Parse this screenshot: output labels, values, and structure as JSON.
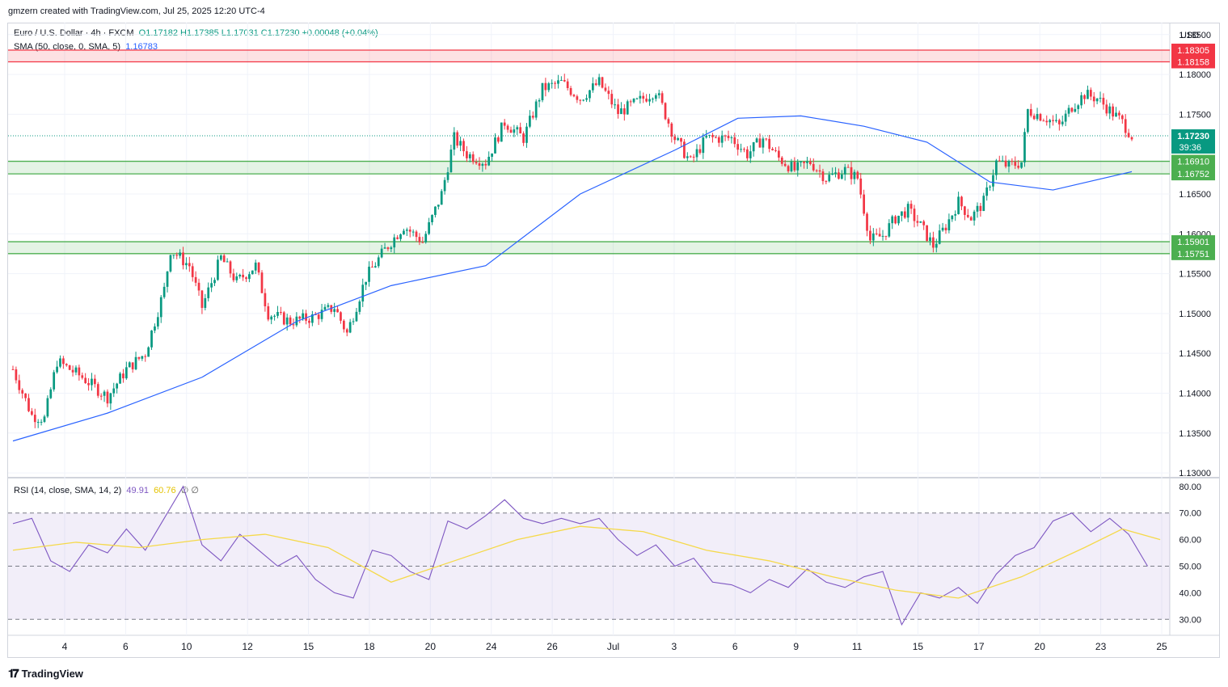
{
  "header": {
    "credit": "gmzern created with TradingView.com, Jul 25, 2025 12:20 UTC-4"
  },
  "main_legend": {
    "symbol": "Euro / U.S. Dollar · 4h · FXCM",
    "ohlc": "O1.17182  H1.17385  L1.17031  C1.17230  +0.00048 (+0.04%)",
    "sma_label": "SMA (50, close, 0, SMA, 5)",
    "sma_value": "1.16783"
  },
  "rsi_legend": {
    "label": "RSI (14, close, SMA, 14, 2)",
    "rsi_value": "49.91",
    "ma_value": "60.76",
    "extra": "∅  ∅"
  },
  "currency": "USD",
  "footer": {
    "brand": "TradingView"
  },
  "chart_data": [
    {
      "type": "candlestick",
      "title": "Euro / U.S. Dollar · 4h · FXCM",
      "y_ticks": [
        "1.18500",
        "1.18000",
        "1.17500",
        "1.16500",
        "1.16000",
        "1.15500",
        "1.15000",
        "1.14500",
        "1.14000",
        "1.13500",
        "1.13000"
      ],
      "ylim": [
        1.1295,
        1.1865
      ],
      "x_ticks": [
        "4",
        "6",
        "10",
        "12",
        "15",
        "18",
        "20",
        "24",
        "26",
        "Jul",
        "3",
        "6",
        "9",
        "11",
        "15",
        "17",
        "20",
        "23",
        "25"
      ],
      "last_price": {
        "value": "1.17230",
        "countdown": "39:36",
        "color": "#089981"
      },
      "zones": [
        {
          "top": "1.18305",
          "bottom": "1.18158",
          "color": "#f23645"
        },
        {
          "top": "1.16910",
          "bottom": "1.16752",
          "color": "#4caf50"
        },
        {
          "top": "1.15901",
          "bottom": "1.15751",
          "color": "#4caf50"
        }
      ],
      "price_path": [
        [
          0,
          1.143
        ],
        [
          6,
          1.1372
        ],
        [
          10,
          1.1368
        ],
        [
          14,
          1.144
        ],
        [
          22,
          1.142
        ],
        [
          30,
          1.1395
        ],
        [
          36,
          1.143
        ],
        [
          42,
          1.145
        ],
        [
          48,
          1.153
        ],
        [
          50,
          1.158
        ],
        [
          56,
          1.156
        ],
        [
          60,
          1.1508
        ],
        [
          66,
          1.157
        ],
        [
          71,
          1.154
        ],
        [
          77,
          1.156
        ],
        [
          81,
          1.15
        ],
        [
          88,
          1.149
        ],
        [
          95,
          1.1495
        ],
        [
          102,
          1.1508
        ],
        [
          106,
          1.1475
        ],
        [
          112,
          1.1545
        ],
        [
          118,
          1.158
        ],
        [
          124,
          1.161
        ],
        [
          130,
          1.159
        ],
        [
          136,
          1.165
        ],
        [
          140,
          1.172
        ],
        [
          144,
          1.17
        ],
        [
          150,
          1.169
        ],
        [
          156,
          1.174
        ],
        [
          162,
          1.172
        ],
        [
          168,
          1.1782
        ],
        [
          174,
          1.179
        ],
        [
          180,
          1.177
        ],
        [
          186,
          1.179
        ],
        [
          192,
          1.1752
        ],
        [
          198,
          1.1765
        ],
        [
          204,
          1.178
        ],
        [
          210,
          1.172
        ],
        [
          215,
          1.169
        ],
        [
          220,
          1.172
        ],
        [
          228,
          1.172
        ],
        [
          233,
          1.17
        ],
        [
          238,
          1.172
        ],
        [
          243,
          1.1695
        ],
        [
          248,
          1.168
        ],
        [
          253,
          1.169
        ],
        [
          258,
          1.167
        ],
        [
          264,
          1.168
        ],
        [
          268,
          1.167
        ],
        [
          272,
          1.1592
        ],
        [
          276,
          1.1598
        ],
        [
          280,
          1.162
        ],
        [
          284,
          1.163
        ],
        [
          288,
          1.161
        ],
        [
          292,
          1.1585
        ],
        [
          296,
          1.161
        ],
        [
          300,
          1.164
        ],
        [
          304,
          1.162
        ],
        [
          308,
          1.164
        ],
        [
          312,
          1.169
        ],
        [
          316,
          1.1685
        ],
        [
          320,
          1.169
        ],
        [
          322,
          1.1755
        ],
        [
          328,
          1.1745
        ],
        [
          332,
          1.1735
        ],
        [
          336,
          1.176
        ],
        [
          340,
          1.1775
        ],
        [
          344,
          1.177
        ],
        [
          348,
          1.1755
        ],
        [
          352,
          1.174
        ],
        [
          355,
          1.1723
        ]
      ],
      "series": [
        {
          "name": "SMA (50, close, 0, SMA, 5)",
          "color": "#2962ff",
          "points": [
            [
              0,
              1.134
            ],
            [
              30,
              1.1375
            ],
            [
              60,
              1.142
            ],
            [
              90,
              1.149
            ],
            [
              120,
              1.1535
            ],
            [
              150,
              1.156
            ],
            [
              180,
              1.165
            ],
            [
              210,
              1.1705
            ],
            [
              230,
              1.1745
            ],
            [
              250,
              1.1748
            ],
            [
              270,
              1.1735
            ],
            [
              290,
              1.1715
            ],
            [
              310,
              1.1665
            ],
            [
              330,
              1.1655
            ],
            [
              355,
              1.1678
            ]
          ]
        }
      ]
    },
    {
      "type": "line",
      "title": "RSI (14, close, SMA, 14, 2)",
      "y_ticks": [
        "80.00",
        "70.00",
        "60.00",
        "50.00",
        "40.00",
        "30.00"
      ],
      "ylim": [
        24,
        83
      ],
      "bands": [
        30,
        50,
        70
      ],
      "series": [
        {
          "name": "RSI",
          "color": "#7e57c2",
          "points": [
            [
              0,
              66
            ],
            [
              6,
              68
            ],
            [
              12,
              52
            ],
            [
              18,
              48
            ],
            [
              24,
              58
            ],
            [
              30,
              55
            ],
            [
              36,
              64
            ],
            [
              42,
              56
            ],
            [
              48,
              68
            ],
            [
              54,
              80
            ],
            [
              60,
              58
            ],
            [
              66,
              52
            ],
            [
              72,
              62
            ],
            [
              78,
              56
            ],
            [
              84,
              50
            ],
            [
              90,
              54
            ],
            [
              96,
              45
            ],
            [
              102,
              40
            ],
            [
              108,
              38
            ],
            [
              114,
              56
            ],
            [
              120,
              54
            ],
            [
              126,
              48
            ],
            [
              132,
              45
            ],
            [
              138,
              67
            ],
            [
              144,
              64
            ],
            [
              150,
              69
            ],
            [
              156,
              75
            ],
            [
              162,
              68
            ],
            [
              168,
              66
            ],
            [
              174,
              68
            ],
            [
              180,
              66
            ],
            [
              186,
              68
            ],
            [
              192,
              60
            ],
            [
              198,
              54
            ],
            [
              204,
              58
            ],
            [
              210,
              50
            ],
            [
              216,
              53
            ],
            [
              222,
              44
            ],
            [
              228,
              43
            ],
            [
              234,
              40
            ],
            [
              240,
              45
            ],
            [
              246,
              42
            ],
            [
              252,
              49
            ],
            [
              258,
              44
            ],
            [
              264,
              42
            ],
            [
              270,
              46
            ],
            [
              276,
              48
            ],
            [
              282,
              28
            ],
            [
              288,
              40
            ],
            [
              294,
              38
            ],
            [
              300,
              42
            ],
            [
              306,
              36
            ],
            [
              312,
              47
            ],
            [
              318,
              54
            ],
            [
              324,
              57
            ],
            [
              330,
              67
            ],
            [
              336,
              70
            ],
            [
              342,
              63
            ],
            [
              348,
              68
            ],
            [
              354,
              62
            ],
            [
              360,
              50
            ]
          ]
        },
        {
          "name": "RSI-based MA",
          "color": "#f5d94a",
          "points": [
            [
              0,
              56
            ],
            [
              20,
              59
            ],
            [
              40,
              57
            ],
            [
              60,
              60
            ],
            [
              80,
              62
            ],
            [
              100,
              57
            ],
            [
              120,
              44
            ],
            [
              140,
              52
            ],
            [
              160,
              60
            ],
            [
              180,
              65
            ],
            [
              200,
              63
            ],
            [
              220,
              56
            ],
            [
              240,
              52
            ],
            [
              260,
              46
            ],
            [
              280,
              41
            ],
            [
              300,
              38
            ],
            [
              320,
              46
            ],
            [
              340,
              57
            ],
            [
              352,
              64
            ],
            [
              364,
              60
            ]
          ]
        }
      ]
    }
  ]
}
